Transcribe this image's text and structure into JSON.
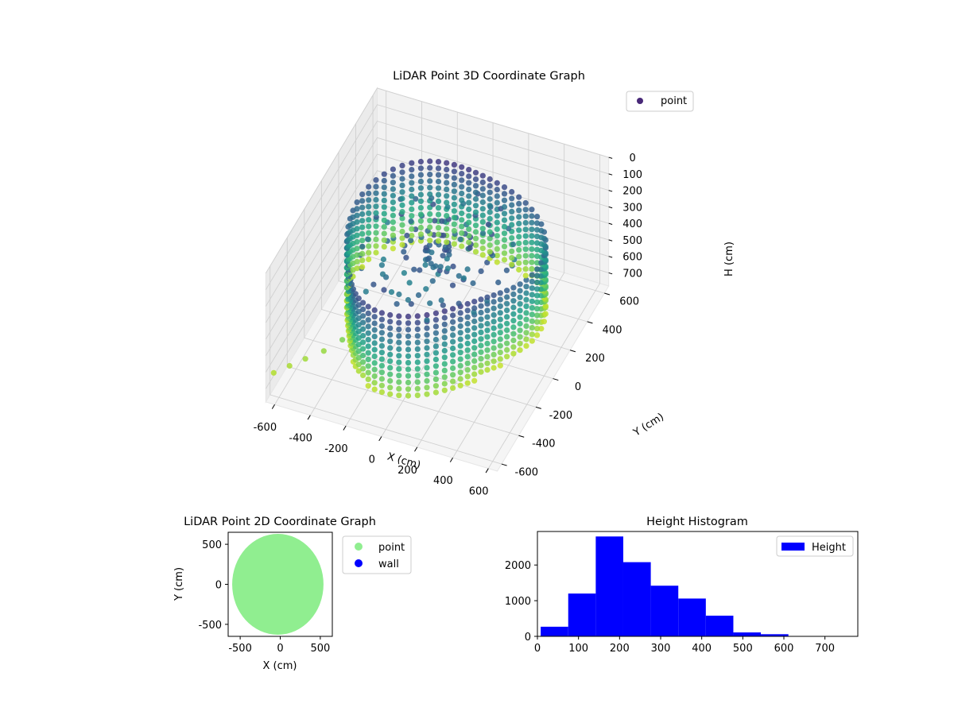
{
  "chart_data": [
    {
      "type": "scatter3d",
      "title": "LiDAR Point 3D Coordinate Graph",
      "xlabel": "X (cm)",
      "ylabel": "Y (cm)",
      "zlabel": "H (cm)",
      "xlim": [
        -650,
        650
      ],
      "ylim": [
        -650,
        650
      ],
      "zlim": [
        780,
        0
      ],
      "xticks": [
        -600,
        -400,
        -200,
        0,
        200,
        400,
        600
      ],
      "yticks": [
        -600,
        -400,
        -200,
        0,
        200,
        400,
        600
      ],
      "zticks": [
        0,
        100,
        200,
        300,
        400,
        500,
        600,
        700
      ],
      "zinverted": true,
      "colormap": "viridis",
      "legend": {
        "position": "upper-right",
        "entries": [
          {
            "label": "point",
            "color": "#482878"
          }
        ]
      },
      "grid": true,
      "series": [
        {
          "name": "point",
          "outlier_points": [
            {
              "x": -620,
              "y": -620,
              "h": 620
            },
            {
              "x": -560,
              "y": -560,
              "h": 610
            },
            {
              "x": -500,
              "y": -500,
              "h": 600
            },
            {
              "x": -430,
              "y": -430,
              "h": 590
            },
            {
              "x": -360,
              "y": -360,
              "h": 560
            }
          ]
        }
      ]
    },
    {
      "type": "scatter",
      "title": "LiDAR Point 2D Coordinate Graph",
      "xlabel": "X (cm)",
      "ylabel": "Y (cm)",
      "xlim": [
        -650,
        650
      ],
      "ylim": [
        -650,
        650
      ],
      "xticks": [
        -500,
        0,
        500
      ],
      "yticks": [
        -500,
        0,
        500
      ],
      "legend": {
        "position": "outside-right",
        "entries": [
          {
            "label": "point",
            "color": "#90ee90"
          },
          {
            "label": "wall",
            "color": "#0000ff"
          }
        ]
      },
      "series": [
        {
          "name": "point",
          "color": "#90ee90",
          "shape": "filled-disc",
          "center": [
            0,
            0
          ],
          "radius": 600
        },
        {
          "name": "wall",
          "color": "#0000ff",
          "points": []
        }
      ]
    },
    {
      "type": "bar",
      "subtype": "histogram",
      "title": "Height Histogram",
      "xlabel": "",
      "ylabel": "",
      "xlim": [
        0,
        780
      ],
      "ylim": [
        0,
        2940
      ],
      "xticks": [
        0,
        100,
        200,
        300,
        400,
        500,
        600,
        700
      ],
      "yticks": [
        0,
        1000,
        2000
      ],
      "bin_edges": [
        8,
        75,
        142,
        209,
        276,
        343,
        410,
        477,
        544,
        611,
        678,
        745
      ],
      "values": [
        270,
        1200,
        2800,
        2080,
        1420,
        1060,
        580,
        110,
        60,
        10,
        5
      ],
      "color": "#0000ff",
      "legend": {
        "position": "upper-right",
        "entries": [
          {
            "label": "Height",
            "color": "#0000ff"
          }
        ]
      }
    }
  ]
}
